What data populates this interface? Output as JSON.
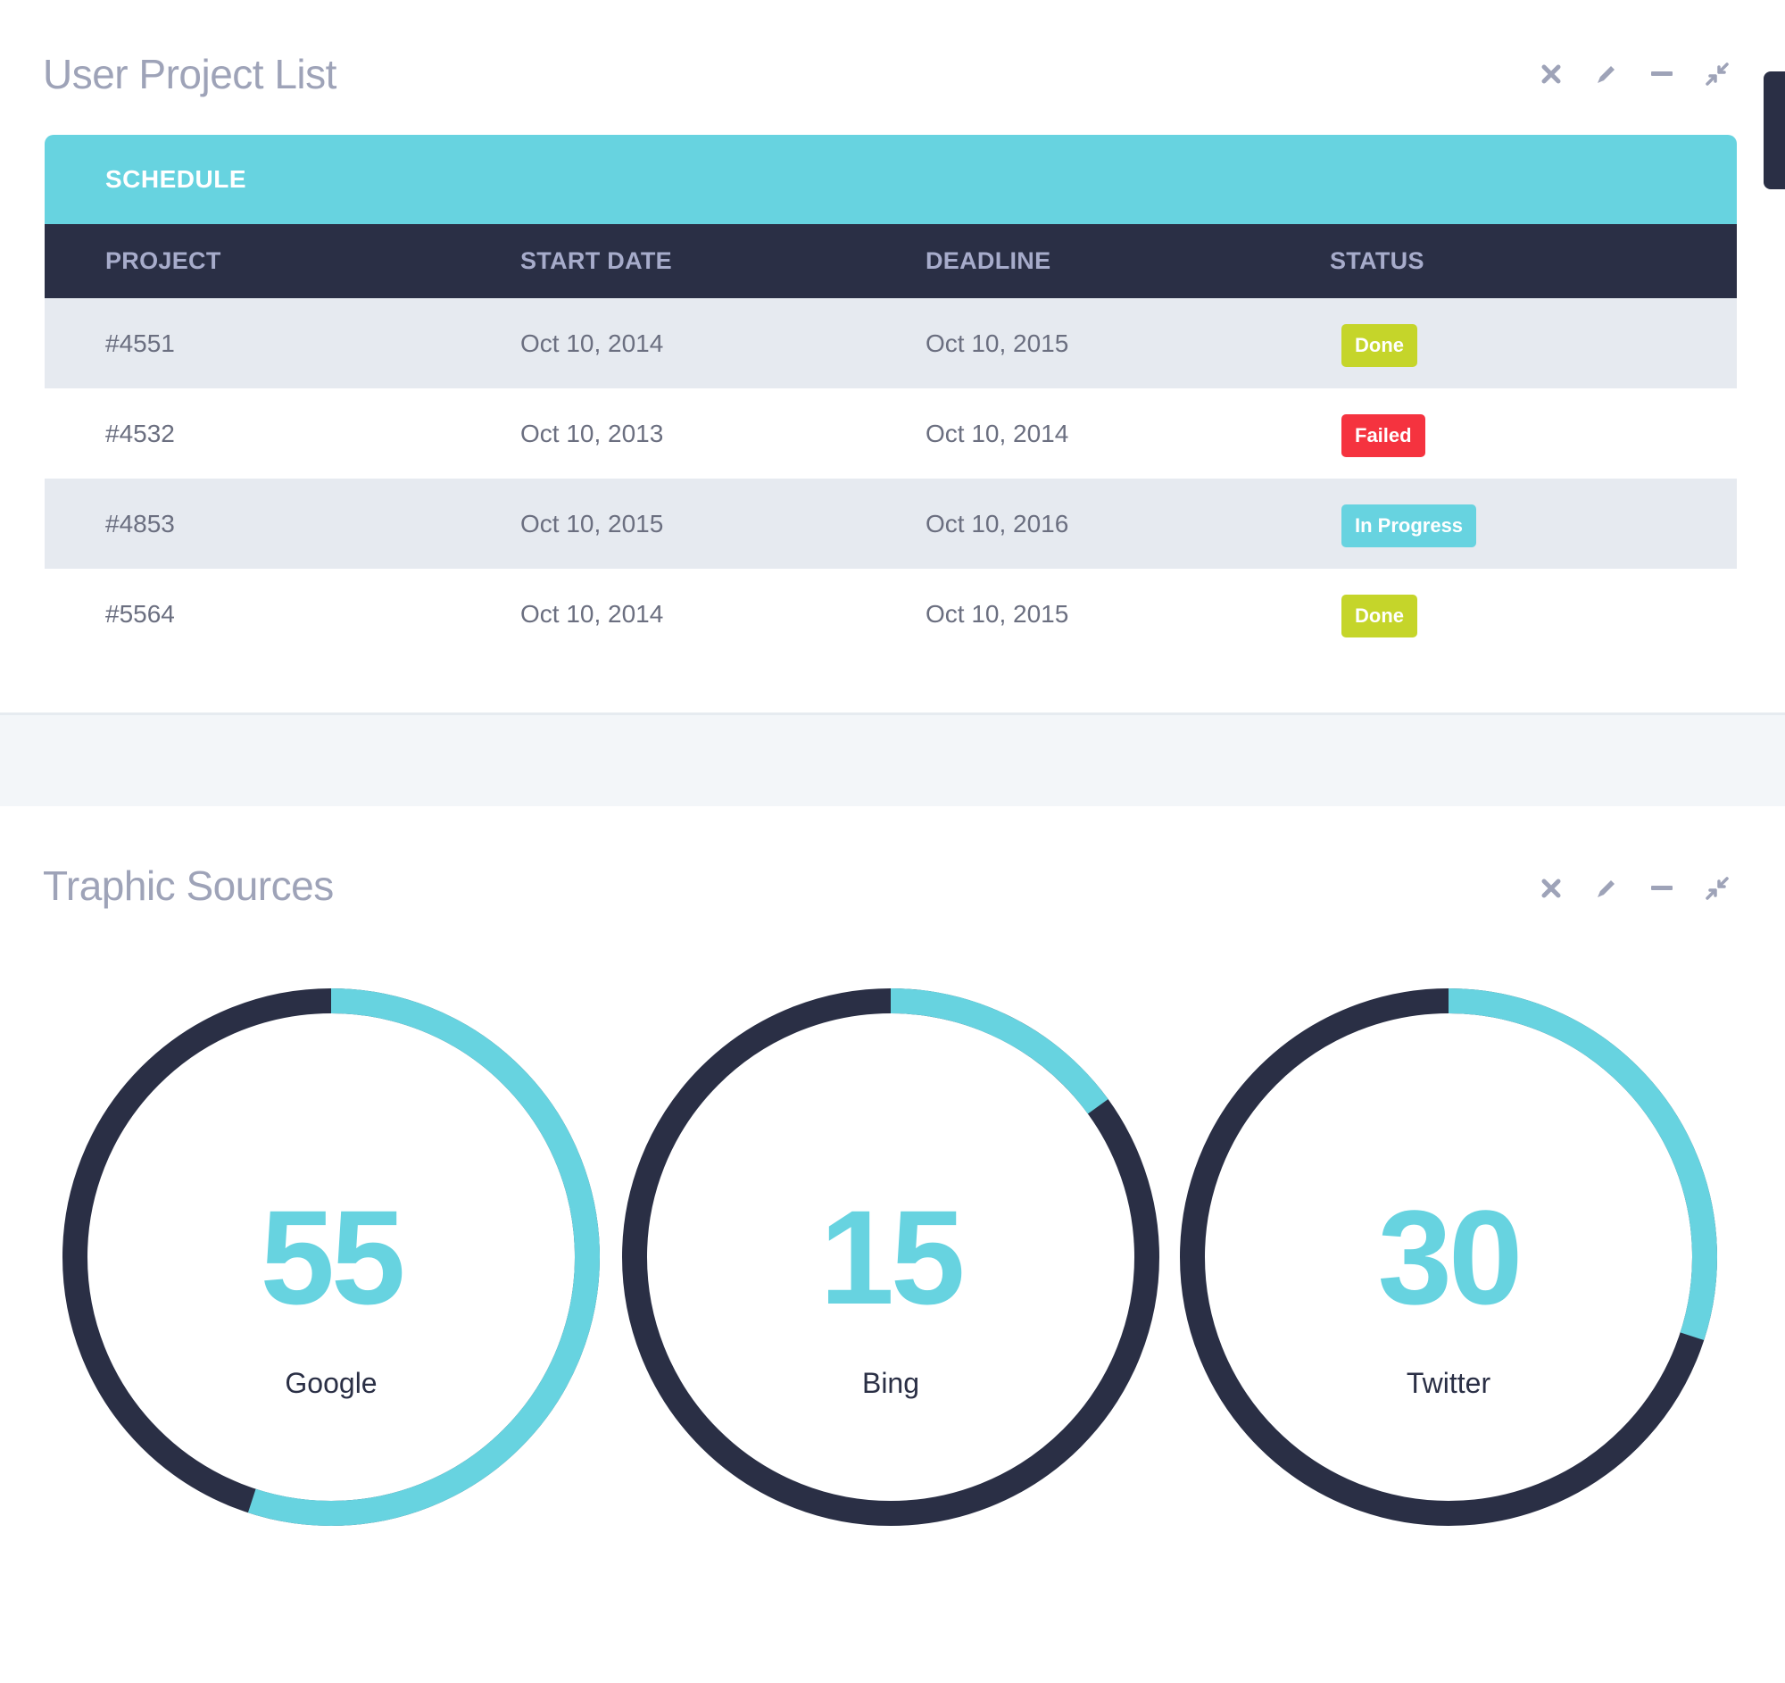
{
  "colors": {
    "accent": "#67d3e0",
    "dark": "#2a2f45",
    "done": "#c5d52a",
    "failed": "#f5333f",
    "in_progress": "#67d3e0"
  },
  "projects_panel": {
    "title": "User Project List",
    "tools": [
      "close-icon",
      "pencil-icon",
      "minimize-icon",
      "collapse-icon"
    ],
    "schedule_label": "SCHEDULE",
    "columns": [
      "PROJECT",
      "START DATE",
      "DEADLINE",
      "STATUS"
    ],
    "rows": [
      {
        "project": "#4551",
        "start": "Oct 10, 2014",
        "deadline": "Oct 10, 2015",
        "status": "Done",
        "status_type": "done"
      },
      {
        "project": "#4532",
        "start": "Oct 10, 2013",
        "deadline": "Oct 10, 2014",
        "status": "Failed",
        "status_type": "failed"
      },
      {
        "project": "#4853",
        "start": "Oct 10, 2015",
        "deadline": "Oct 10, 2016",
        "status": "In Progress",
        "status_type": "progress"
      },
      {
        "project": "#5564",
        "start": "Oct 10, 2014",
        "deadline": "Oct 10, 2015",
        "status": "Done",
        "status_type": "done"
      }
    ]
  },
  "traffic_panel": {
    "title": "Traphic Sources",
    "tools": [
      "close-icon",
      "pencil-icon",
      "minimize-icon",
      "collapse-icon"
    ],
    "sources": [
      {
        "name": "Google",
        "value": "55",
        "percent": 55
      },
      {
        "name": "Bing",
        "value": "15",
        "percent": 15
      },
      {
        "name": "Twitter",
        "value": "30",
        "percent": 30
      }
    ]
  }
}
